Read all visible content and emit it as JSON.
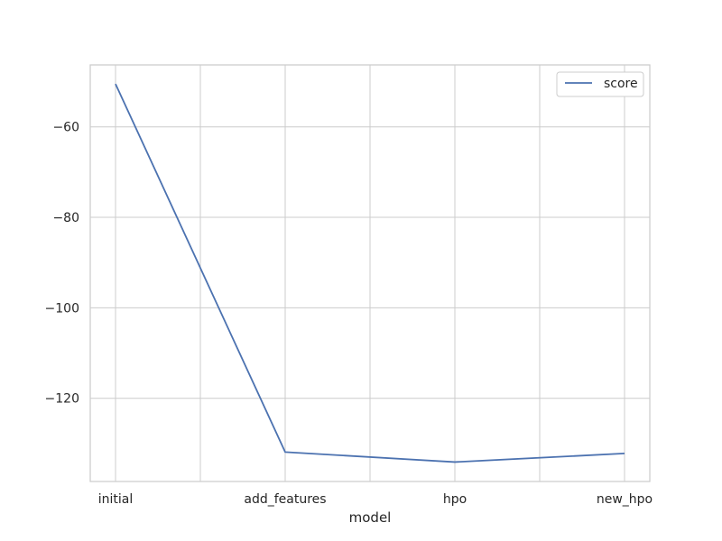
{
  "chart_data": {
    "type": "line",
    "title": "",
    "xlabel": "model",
    "ylabel": "",
    "categories": [
      "initial",
      "add_features",
      "hpo",
      "new_hpo"
    ],
    "series": [
      {
        "name": "score",
        "values": [
          -50.5,
          -131.9,
          -134.1,
          -132.2
        ],
        "color": "#4c72b0"
      }
    ],
    "ylim": [
      -138.4,
      -46.3
    ],
    "yticks": [
      -120,
      -100,
      -80,
      -60
    ],
    "ytick_labels": [
      "−120",
      "−100",
      "−80",
      "−60"
    ],
    "grid": true,
    "legend_position": "top-right"
  }
}
